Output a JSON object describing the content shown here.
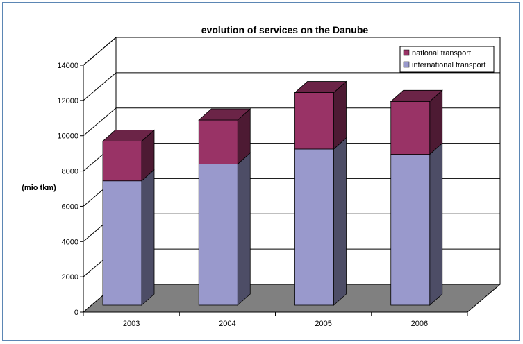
{
  "chart_data": {
    "type": "bar",
    "stacked": true,
    "three_d": true,
    "title": "evolution of services on the Danube",
    "ylabel": "(mio tkm)",
    "xlabel": "",
    "categories": [
      "2003",
      "2004",
      "2005",
      "2006"
    ],
    "series": [
      {
        "name": "international transport",
        "values": [
          7050,
          8000,
          8850,
          8550
        ],
        "color": "#9999cc"
      },
      {
        "name": "national transport",
        "values": [
          2250,
          2500,
          3200,
          3000
        ],
        "color": "#993366"
      }
    ],
    "ylim": [
      0,
      14000
    ],
    "yticks": [
      "0",
      "2000",
      "4000",
      "6000",
      "8000",
      "10000",
      "12000",
      "14000"
    ],
    "grid": true,
    "legend_position": "top-right"
  }
}
